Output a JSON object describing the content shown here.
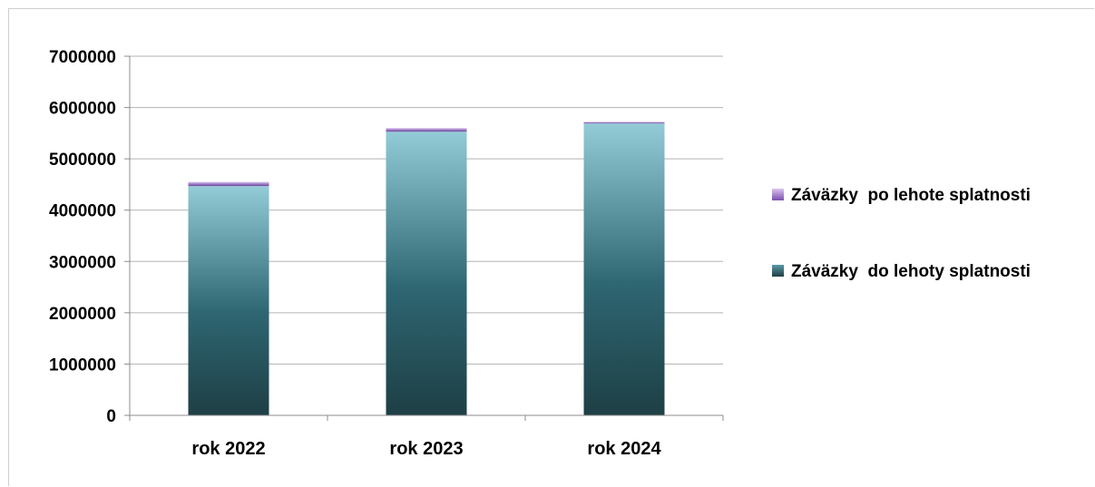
{
  "chart_data": {
    "type": "bar",
    "stacked": true,
    "categories": [
      "rok 2022",
      "rok 2023",
      "rok 2024"
    ],
    "series": [
      {
        "name": "Záväzky  do lehoty splatnosti",
        "values": [
          4470000,
          5530000,
          5690000
        ],
        "color": "#2e6672"
      },
      {
        "name": "Záväzky  po lehote splatnosti",
        "values": [
          80000,
          70000,
          30000
        ],
        "color": "#9b6fc4"
      }
    ],
    "ylim": [
      0,
      7000000
    ],
    "yticks": [
      "0",
      "1000000",
      "2000000",
      "3000000",
      "4000000",
      "5000000",
      "6000000",
      "7000000"
    ],
    "grid": true,
    "legend": "right"
  }
}
